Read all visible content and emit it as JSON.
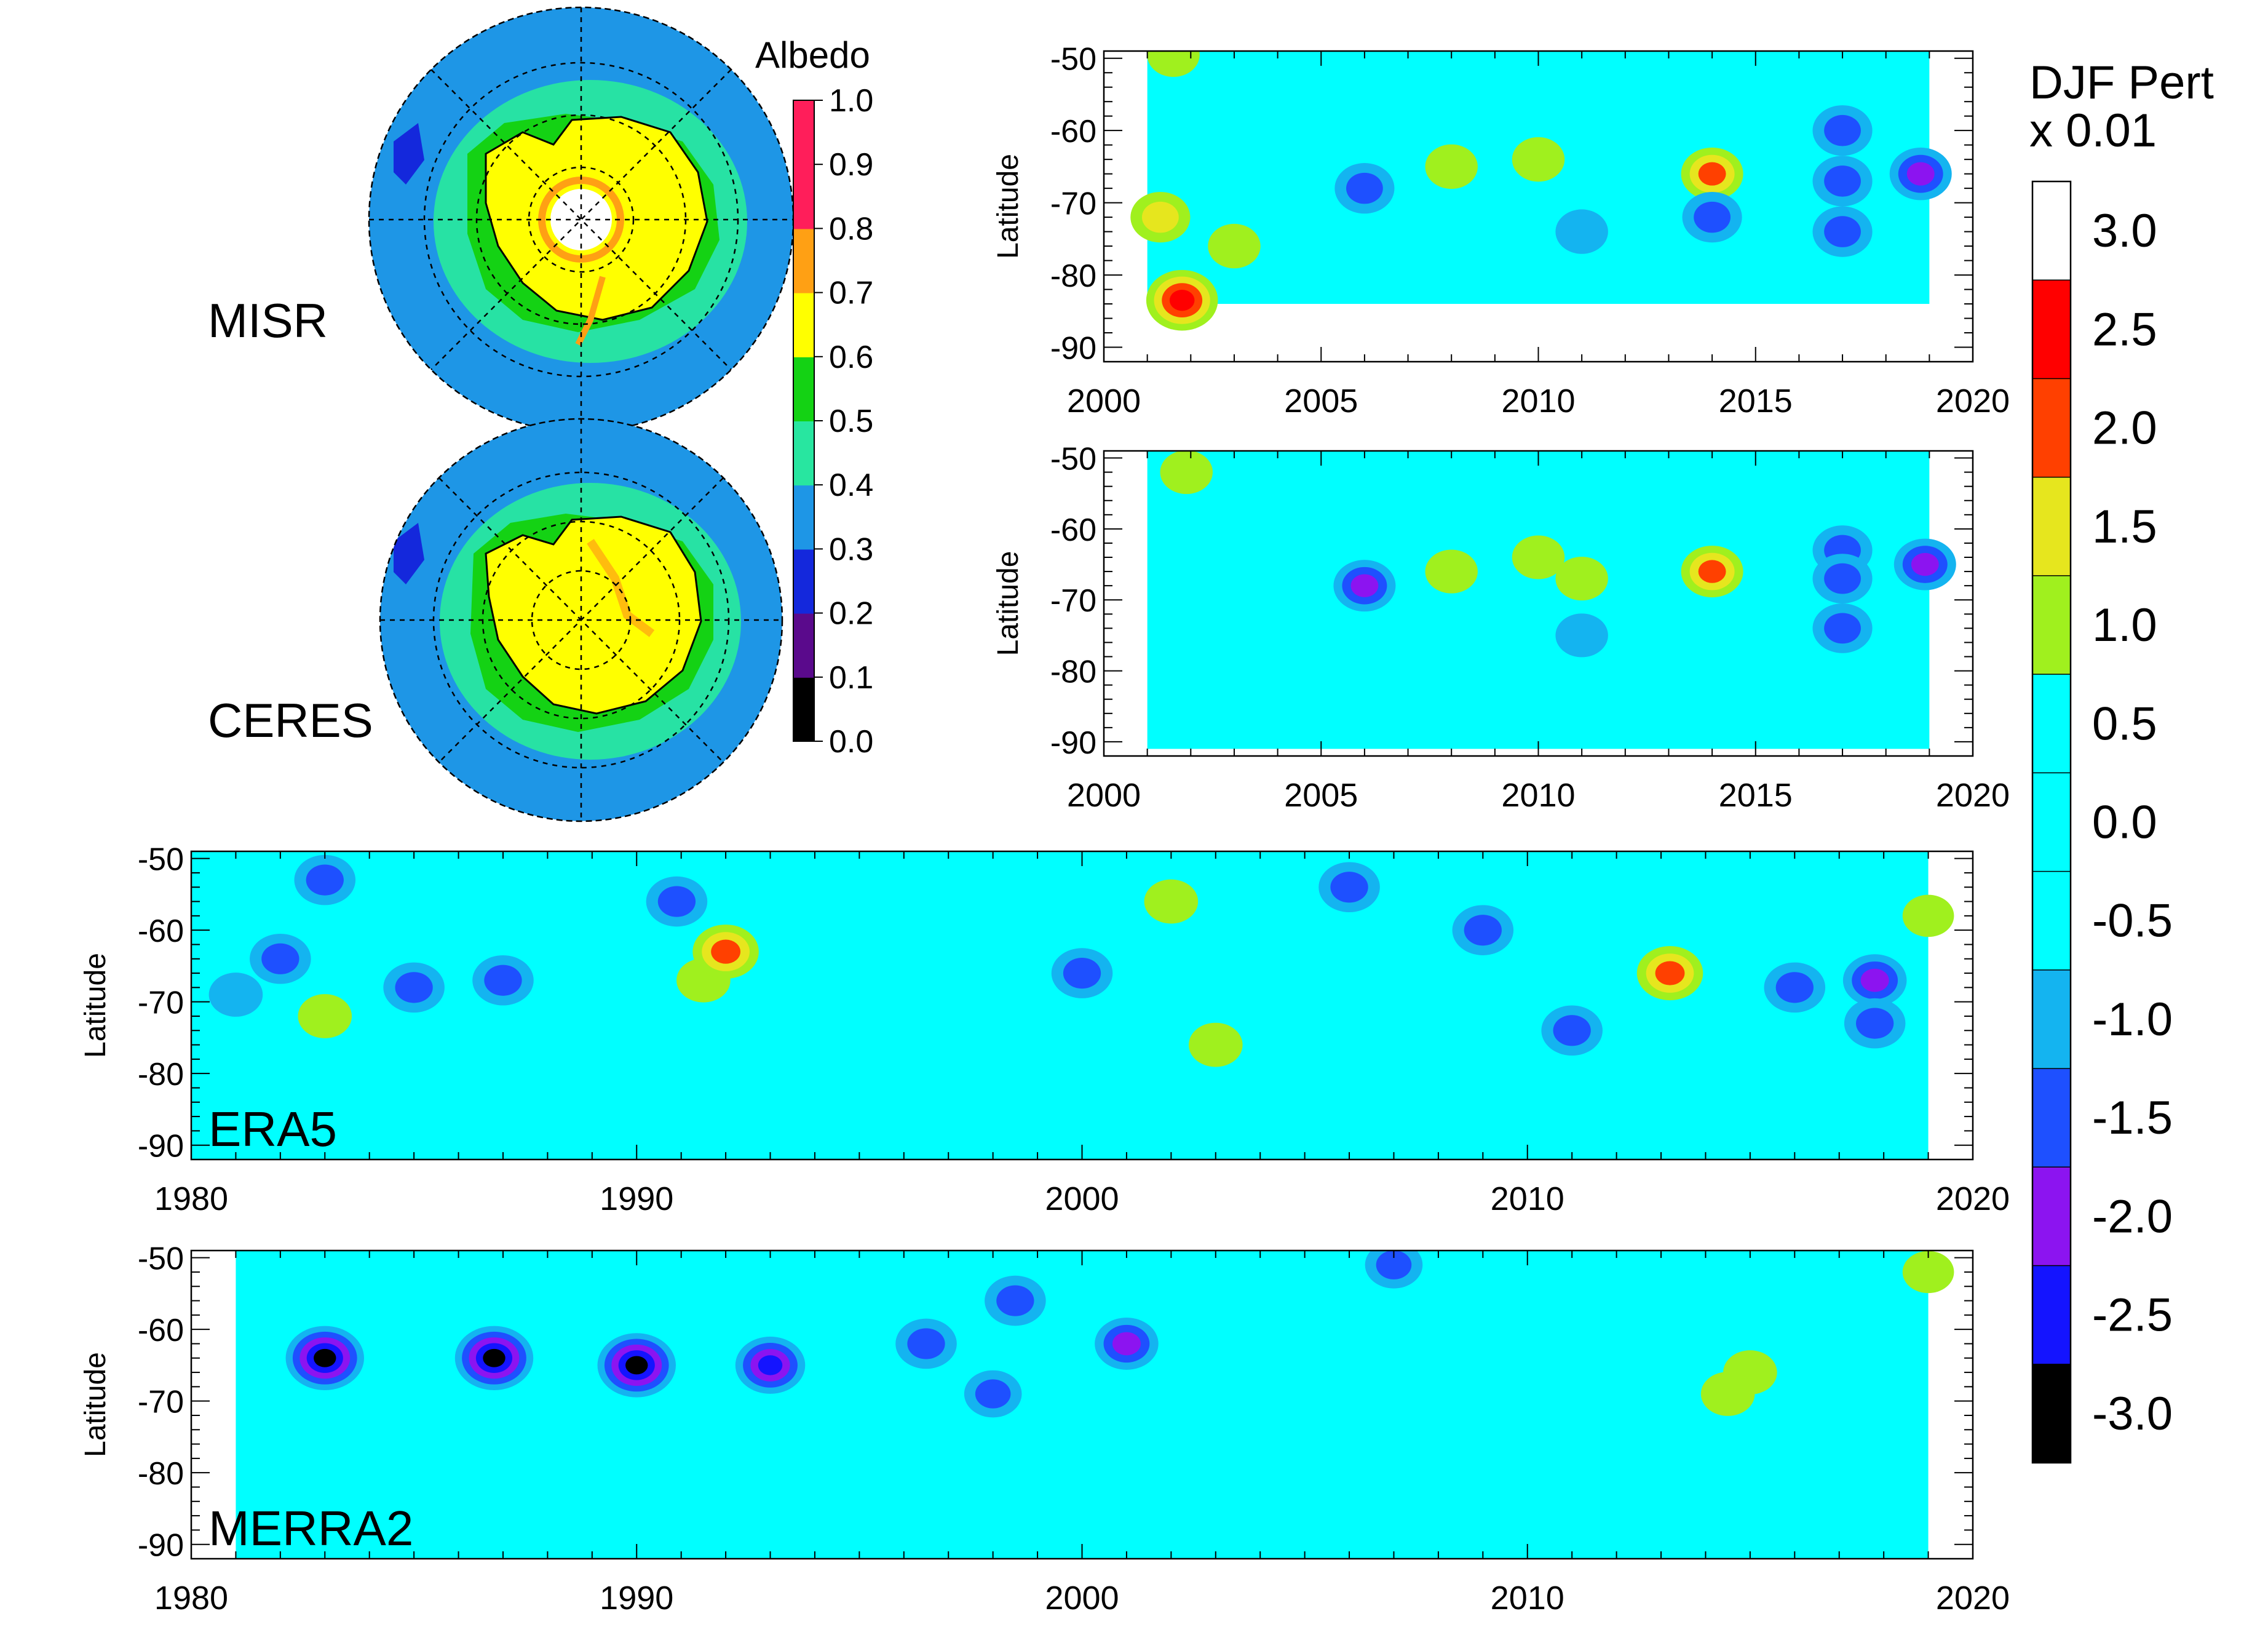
{
  "chart_data": [
    {
      "id": "misr",
      "type": "polar-map",
      "label": "MISR",
      "variable": "Albedo",
      "region": "South Pole (polar stereographic)"
    },
    {
      "id": "ceres",
      "type": "polar-map",
      "label": "CERES",
      "variable": "Albedo",
      "region": "South Pole (polar stereographic)"
    },
    {
      "id": "albedo_colorbar",
      "type": "colorbar",
      "title": "Albedo",
      "ticks": [
        "0.0",
        "0.1",
        "0.2",
        "0.3",
        "0.4",
        "0.5",
        "0.6",
        "0.7",
        "0.8",
        "0.9",
        "1.0"
      ],
      "colors": [
        "#000000",
        "#5a0a8c",
        "#1428dc",
        "#1e96e6",
        "#28e6a0",
        "#14d214",
        "#ffff00",
        "#ffa014",
        "#ff1e5a",
        "#ff1e5a"
      ]
    },
    {
      "id": "misr_pert",
      "type": "heatmap",
      "label": "",
      "ylabel": "Latitude",
      "xlim": [
        2000,
        2020
      ],
      "xticks": [
        "2000",
        "2005",
        "2010",
        "2015",
        "2020"
      ],
      "ylim": [
        -92,
        -49
      ],
      "yticks": [
        "-50",
        "-60",
        "-70",
        "-80",
        "-90"
      ],
      "data_extent": [
        2001,
        2019,
        -84,
        -49
      ],
      "features": [
        {
          "x": 2001.6,
          "y": -49.5,
          "v": 1.2
        },
        {
          "x": 2006,
          "y": -68,
          "v": -1.8
        },
        {
          "x": 2010,
          "y": -64,
          "v": 1.2
        },
        {
          "x": 2014,
          "y": -66,
          "v": 2.0
        },
        {
          "x": 2014,
          "y": -72,
          "v": -1.8
        },
        {
          "x": 2017,
          "y": -60,
          "v": -1.8
        },
        {
          "x": 2017,
          "y": -67,
          "v": -1.8
        },
        {
          "x": 2017,
          "y": -74,
          "v": -1.8
        },
        {
          "x": 2018.8,
          "y": -66,
          "v": -2.0
        },
        {
          "x": 2001.3,
          "y": -72,
          "v": 1.8
        },
        {
          "x": 2003,
          "y": -76,
          "v": 1.2
        },
        {
          "x": 2011,
          "y": -74,
          "v": -1.2
        },
        {
          "x": 2008,
          "y": -65,
          "v": 1.2
        },
        {
          "x": 2001.8,
          "y": -83.5,
          "v": 2.8
        }
      ]
    },
    {
      "id": "ceres_pert",
      "type": "heatmap",
      "label": "",
      "ylabel": "Latitude",
      "xlim": [
        2000,
        2020
      ],
      "xticks": [
        "2000",
        "2005",
        "2010",
        "2015",
        "2020"
      ],
      "ylim": [
        -92,
        -49
      ],
      "yticks": [
        "-50",
        "-60",
        "-70",
        "-80",
        "-90"
      ],
      "data_extent": [
        2001,
        2019,
        -91,
        -49
      ],
      "features": [
        {
          "x": 2001.9,
          "y": -52,
          "v": 1.2
        },
        {
          "x": 2006,
          "y": -68,
          "v": -2.0
        },
        {
          "x": 2010,
          "y": -64,
          "v": 1.2
        },
        {
          "x": 2008,
          "y": -66,
          "v": 1.2
        },
        {
          "x": 2011,
          "y": -67,
          "v": 1.2
        },
        {
          "x": 2014,
          "y": -66,
          "v": 2.0
        },
        {
          "x": 2017,
          "y": -63,
          "v": -1.8
        },
        {
          "x": 2017,
          "y": -67,
          "v": -1.8
        },
        {
          "x": 2017,
          "y": -74,
          "v": -1.8
        },
        {
          "x": 2018.9,
          "y": -65,
          "v": -2.0
        },
        {
          "x": 2011,
          "y": -75,
          "v": -1.2
        }
      ]
    },
    {
      "id": "era5_pert",
      "type": "heatmap",
      "label": "ERA5",
      "ylabel": "Latitude",
      "xlim": [
        1980,
        2020
      ],
      "xticks": [
        "1980",
        "1990",
        "2000",
        "2010",
        "2020"
      ],
      "ylim": [
        -92,
        -49
      ],
      "yticks": [
        "-50",
        "-60",
        "-70",
        "-80",
        "-90"
      ],
      "data_extent": [
        1980,
        2019,
        -92,
        -49
      ],
      "features": [
        {
          "x": 1982,
          "y": -64,
          "v": -1.8
        },
        {
          "x": 1983,
          "y": -72,
          "v": 1.2
        },
        {
          "x": 1981,
          "y": -69,
          "v": -1.2
        },
        {
          "x": 1983,
          "y": -53,
          "v": -1.8
        },
        {
          "x": 1985,
          "y": -68,
          "v": -1.8
        },
        {
          "x": 1987,
          "y": -67,
          "v": -1.8
        },
        {
          "x": 1990.9,
          "y": -56,
          "v": -1.8
        },
        {
          "x": 1991.5,
          "y": -67,
          "v": 1.2
        },
        {
          "x": 1992,
          "y": -63,
          "v": 2.2
        },
        {
          "x": 2000,
          "y": -66,
          "v": -1.8
        },
        {
          "x": 2002,
          "y": -56,
          "v": 1.2
        },
        {
          "x": 2003,
          "y": -76,
          "v": 1.2
        },
        {
          "x": 2006,
          "y": -54,
          "v": -1.8
        },
        {
          "x": 2009,
          "y": -60,
          "v": -1.8
        },
        {
          "x": 2011,
          "y": -74,
          "v": -1.8
        },
        {
          "x": 2013.2,
          "y": -66,
          "v": 2.2
        },
        {
          "x": 2016,
          "y": -68,
          "v": -1.8
        },
        {
          "x": 2017.8,
          "y": -67,
          "v": -2.0
        },
        {
          "x": 2017.8,
          "y": -73,
          "v": -1.8
        },
        {
          "x": 2019,
          "y": -58,
          "v": 1.0
        }
      ]
    },
    {
      "id": "merra2_pert",
      "type": "heatmap",
      "label": "MERRA2",
      "ylabel": "Latitude",
      "xlim": [
        1980,
        2020
      ],
      "xticks": [
        "1980",
        "1990",
        "2000",
        "2010",
        "2020"
      ],
      "ylim": [
        -92,
        -49
      ],
      "yticks": [
        "-50",
        "-60",
        "-70",
        "-80",
        "-90"
      ],
      "data_extent": [
        1981,
        2019,
        -92,
        -49
      ],
      "features": [
        {
          "x": 1983,
          "y": -64,
          "v": -3.2
        },
        {
          "x": 1986.8,
          "y": -64,
          "v": -3.2
        },
        {
          "x": 1990,
          "y": -65,
          "v": -3.2
        },
        {
          "x": 1993,
          "y": -65,
          "v": -2.5
        },
        {
          "x": 1996.5,
          "y": -62,
          "v": -1.8
        },
        {
          "x": 1998.5,
          "y": -56,
          "v": -1.8
        },
        {
          "x": 2001,
          "y": -62,
          "v": -2.0
        },
        {
          "x": 1998,
          "y": -69,
          "v": -1.5
        },
        {
          "x": 2007,
          "y": -51,
          "v": -1.5
        },
        {
          "x": 2015,
          "y": -66,
          "v": 1.2
        },
        {
          "x": 2014.5,
          "y": -69,
          "v": 1.2
        },
        {
          "x": 2019,
          "y": -52,
          "v": 1.0
        }
      ]
    },
    {
      "id": "pert_colorbar",
      "type": "colorbar",
      "title_line1": "DJF Pert",
      "title_line2": "x 0.01",
      "ticks": [
        "3.0",
        "2.5",
        "2.0",
        "1.5",
        "1.0",
        "0.5",
        "0.0",
        "-0.5",
        "-1.0",
        "-1.5",
        "-2.0",
        "-2.5",
        "-3.0"
      ],
      "colors": [
        "#ffffff",
        "#ff0000",
        "#ff4000",
        "#e6e61e",
        "#a0f01e",
        "#00ffff",
        "#00ffff",
        "#00ffff",
        "#14b4f0",
        "#1e50ff",
        "#8c14f0",
        "#1414ff",
        "#000000"
      ]
    }
  ]
}
